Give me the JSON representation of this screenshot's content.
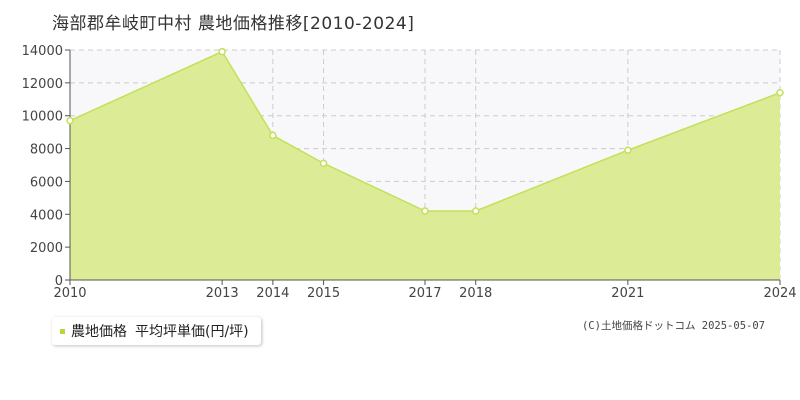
{
  "page": {
    "title": "海部郡牟岐町中村 農地価格推移[2010-2024]",
    "credit": "(C)土地価格ドットコム 2025-05-07"
  },
  "legend": {
    "label": "農地価格",
    "sublabel": "平均坪単価(円/坪)"
  },
  "colors": {
    "fill": "#dcec96",
    "line": "#c2e05a",
    "marker_stroke": "#c2e05a",
    "marker_fill": "#ffffff",
    "grid": "#cccccc",
    "plot_bg": "#f8f7fa",
    "legend_swatch": "#b5d93a"
  },
  "chart_data": {
    "type": "area",
    "title": "海部郡牟岐町中村 農地価格推移[2010-2024]",
    "x": [
      "2010",
      "2013",
      "2014",
      "2015",
      "2017",
      "2018",
      "2021",
      "2024"
    ],
    "series": [
      {
        "name": "農地価格 平均坪単価(円/坪)",
        "values": [
          9700,
          13900,
          8800,
          7100,
          4200,
          4200,
          7900,
          11400
        ]
      }
    ],
    "y_ticks": [
      "0",
      "2000",
      "4000",
      "6000",
      "8000",
      "10000",
      "12000",
      "14000"
    ],
    "ylim": [
      0,
      14000
    ],
    "xlabel": "",
    "ylabel": "",
    "grid": true,
    "legend_position": "bottom-left"
  }
}
